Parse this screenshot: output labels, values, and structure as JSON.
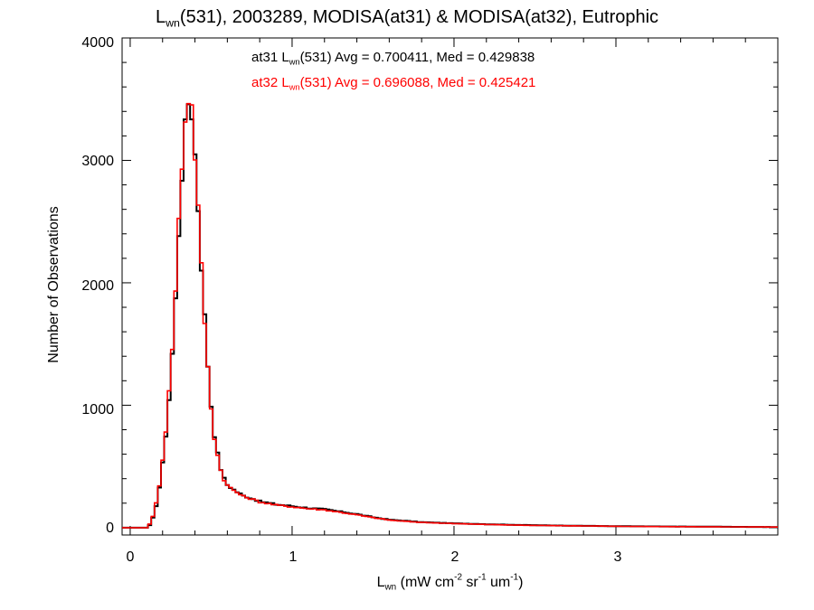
{
  "title": {
    "main": "L",
    "main_sub": "wn",
    "rest": "(531), 2003289, MODISA(at31) & MODISA(at32), Eutrophic"
  },
  "legend": [
    {
      "prefix": "at31 L",
      "sub": "wn",
      "rest": "(531) Avg = 0.700411, Med = 0.429838",
      "color": "#000000"
    },
    {
      "prefix": "at32 L",
      "sub": "wn",
      "rest": "(531) Avg = 0.696088, Med = 0.425421",
      "color": "#ff0000"
    }
  ],
  "axes": {
    "xlabel": {
      "a": "L",
      "a_sub": "wn",
      "b": " (mW cm",
      "b_sup": "-2",
      "c": " sr",
      "c_sup": "-1",
      "d": " um",
      "d_sup": "-1",
      "e": ")"
    },
    "ylabel": "Number of Observations",
    "xticks": [
      "0",
      "1",
      "2",
      "3"
    ],
    "yticks": [
      "0",
      "1000",
      "2000",
      "3000",
      "4000"
    ]
  },
  "chart_data": {
    "type": "line",
    "title": "Lwn(531), 2003289, MODISA(at31) & MODISA(at32), Eutrophic",
    "xlabel": "Lwn (mW cm-2 sr-1 um-1)",
    "ylabel": "Number of Observations",
    "xlim": [
      -0.05,
      4.0
    ],
    "ylim": [
      -60,
      4000
    ],
    "grid": false,
    "x_bin_width": 0.02,
    "peak": {
      "x": 0.36,
      "y": 3530
    },
    "series": [
      {
        "name": "at31",
        "color": "#000000",
        "points": [
          [
            -0.05,
            0
          ],
          [
            0.1,
            0
          ],
          [
            0.12,
            20
          ],
          [
            0.14,
            80
          ],
          [
            0.16,
            180
          ],
          [
            0.18,
            330
          ],
          [
            0.2,
            520
          ],
          [
            0.22,
            760
          ],
          [
            0.24,
            1050
          ],
          [
            0.26,
            1420
          ],
          [
            0.28,
            1860
          ],
          [
            0.3,
            2420
          ],
          [
            0.32,
            2900
          ],
          [
            0.34,
            3250
          ],
          [
            0.36,
            3480
          ],
          [
            0.38,
            3400
          ],
          [
            0.4,
            3050
          ],
          [
            0.42,
            2620
          ],
          [
            0.44,
            2150
          ],
          [
            0.46,
            1720
          ],
          [
            0.48,
            1330
          ],
          [
            0.5,
            1000
          ],
          [
            0.52,
            760
          ],
          [
            0.54,
            600
          ],
          [
            0.56,
            480
          ],
          [
            0.58,
            400
          ],
          [
            0.6,
            350
          ],
          [
            0.65,
            300
          ],
          [
            0.7,
            260
          ],
          [
            0.75,
            240
          ],
          [
            0.8,
            215
          ],
          [
            0.9,
            190
          ],
          [
            1.0,
            175
          ],
          [
            1.1,
            160
          ],
          [
            1.2,
            150
          ],
          [
            1.3,
            130
          ],
          [
            1.4,
            110
          ],
          [
            1.5,
            85
          ],
          [
            1.6,
            65
          ],
          [
            1.7,
            55
          ],
          [
            1.8,
            45
          ],
          [
            2.0,
            35
          ],
          [
            2.2,
            28
          ],
          [
            2.4,
            22
          ],
          [
            2.6,
            18
          ],
          [
            2.8,
            15
          ],
          [
            3.0,
            12
          ],
          [
            3.2,
            10
          ],
          [
            3.4,
            9
          ],
          [
            3.6,
            8
          ],
          [
            3.8,
            6
          ],
          [
            4.0,
            5
          ]
        ]
      },
      {
        "name": "at32",
        "color": "#ff0000",
        "points": [
          [
            -0.05,
            0
          ],
          [
            0.1,
            0
          ],
          [
            0.12,
            30
          ],
          [
            0.14,
            90
          ],
          [
            0.16,
            200
          ],
          [
            0.18,
            350
          ],
          [
            0.2,
            560
          ],
          [
            0.22,
            800
          ],
          [
            0.24,
            1100
          ],
          [
            0.26,
            1480
          ],
          [
            0.28,
            1930
          ],
          [
            0.3,
            2500
          ],
          [
            0.32,
            2980
          ],
          [
            0.34,
            3330
          ],
          [
            0.36,
            3530
          ],
          [
            0.38,
            3430
          ],
          [
            0.4,
            3060
          ],
          [
            0.42,
            2600
          ],
          [
            0.44,
            2120
          ],
          [
            0.46,
            1690
          ],
          [
            0.48,
            1300
          ],
          [
            0.5,
            980
          ],
          [
            0.52,
            740
          ],
          [
            0.54,
            590
          ],
          [
            0.56,
            470
          ],
          [
            0.58,
            395
          ],
          [
            0.6,
            345
          ],
          [
            0.65,
            295
          ],
          [
            0.7,
            255
          ],
          [
            0.75,
            235
          ],
          [
            0.8,
            210
          ],
          [
            0.9,
            185
          ],
          [
            1.0,
            170
          ],
          [
            1.1,
            155
          ],
          [
            1.2,
            145
          ],
          [
            1.3,
            125
          ],
          [
            1.4,
            105
          ],
          [
            1.5,
            82
          ],
          [
            1.6,
            62
          ],
          [
            1.7,
            52
          ],
          [
            1.8,
            43
          ],
          [
            2.0,
            33
          ],
          [
            2.2,
            26
          ],
          [
            2.4,
            20
          ],
          [
            2.6,
            17
          ],
          [
            2.8,
            14
          ],
          [
            3.0,
            11
          ],
          [
            3.2,
            9
          ],
          [
            3.4,
            8
          ],
          [
            3.6,
            7
          ],
          [
            3.8,
            6
          ],
          [
            4.0,
            5
          ]
        ]
      }
    ]
  }
}
